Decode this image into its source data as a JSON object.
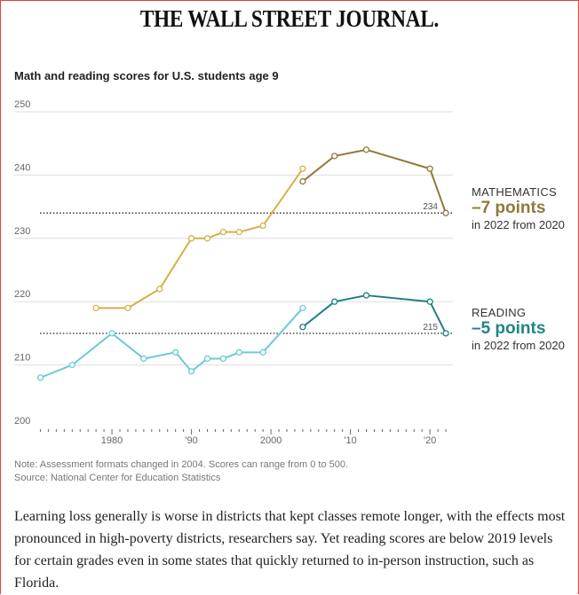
{
  "masthead": "THE WALL STREET JOURNAL.",
  "colors": {
    "frame": "#e2463a",
    "math_early": "#d4b14a",
    "math_late": "#8f7a3c",
    "reading_early": "#6ccccc",
    "reading_late": "#1f7f7f",
    "gridline": "#dddddd",
    "reference_line": "#333333"
  },
  "chart_data": {
    "type": "line",
    "title": "Math and reading scores for U.S. students age 9",
    "xlabel": "",
    "ylabel": "",
    "xlim": [
      1970.5,
      2023
    ],
    "ylim": [
      200,
      250
    ],
    "y_ticks": [
      250,
      240,
      230,
      220,
      210,
      200
    ],
    "x_ticks": [
      {
        "value": 1980,
        "label": "1980"
      },
      {
        "value": 1990,
        "label": "'90"
      },
      {
        "value": 2000,
        "label": "2000"
      },
      {
        "value": 2010,
        "label": "'10"
      },
      {
        "value": 2020,
        "label": "'20"
      }
    ],
    "grid": "horizontal",
    "series": [
      {
        "key": "math_early",
        "subject": "math",
        "color": "#d4b14a",
        "x": [
          1978,
          1982,
          1986,
          1990,
          1992,
          1994,
          1996,
          1999,
          2004
        ],
        "y": [
          219,
          219,
          222,
          230,
          230,
          231,
          231,
          232,
          241
        ]
      },
      {
        "key": "math_late",
        "subject": "math",
        "color": "#8f7a3c",
        "x": [
          2004,
          2008,
          2012,
          2020,
          2022
        ],
        "y": [
          239,
          243,
          244,
          241,
          234
        ]
      },
      {
        "key": "reading_early",
        "subject": "reading",
        "color": "#6ccccc",
        "x": [
          1971,
          1975,
          1980,
          1984,
          1988,
          1990,
          1992,
          1994,
          1996,
          1999,
          2004
        ],
        "y": [
          208,
          210,
          215,
          211,
          212,
          209,
          211,
          211,
          212,
          212,
          219
        ]
      },
      {
        "key": "reading_late",
        "subject": "reading",
        "color": "#1f7f7f",
        "x": [
          2004,
          2008,
          2012,
          2020,
          2022
        ],
        "y": [
          216,
          220,
          221,
          220,
          215
        ]
      }
    ],
    "reference_lines": [
      {
        "subject": "math",
        "value": 234,
        "label": "234"
      },
      {
        "subject": "reading",
        "value": 215,
        "label": "215"
      }
    ],
    "annotations": [
      {
        "subject": "math",
        "name": "MATHEMATICS",
        "change": "–7 points",
        "period": "in 2022 from 2020",
        "color": "#8f7a3c"
      },
      {
        "subject": "reading",
        "name": "READING",
        "change": "–5 points",
        "period": "in 2022 from 2020",
        "color": "#1f8585"
      }
    ]
  },
  "note": "Note: Assessment formats changed in 2004. Scores can range from 0 to 500.",
  "source": "Source: National Center for Education Statistics",
  "body_text": "Learning loss generally is worse in districts that kept classes remote longer, with the effects most pronounced in high-poverty districts, researchers say. Yet reading scores are below 2019 levels for certain grades even in some states that quickly returned to in-person instruction, such as Florida."
}
